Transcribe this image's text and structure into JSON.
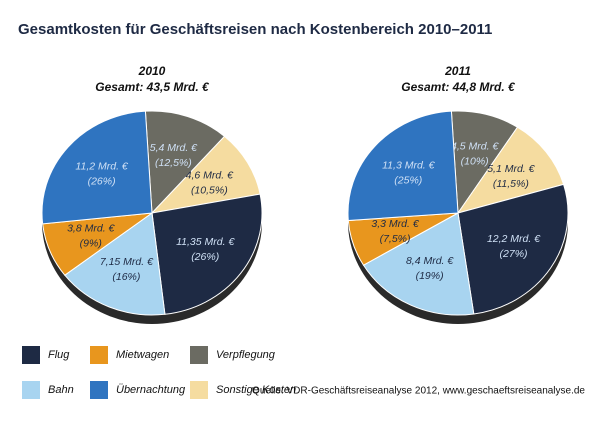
{
  "title": "Gesamtkosten für Geschäftsreisen nach Kostenbereich 2010–2011",
  "source": "Quelle: VDR-Geschäftsreiseanalyse 2012, www.geschaeftsreiseanalyse.de",
  "legend": [
    {
      "name": "Flug",
      "color": "#1e2a44"
    },
    {
      "name": "Bahn",
      "color": "#a8d4f0"
    },
    {
      "name": "Mietwagen",
      "color": "#e8961e"
    },
    {
      "name": "Übernachtung",
      "color": "#2f74c0"
    },
    {
      "name": "Verpflegung",
      "color": "#6b6b62"
    },
    {
      "name": "Sonstige Kosten",
      "color": "#f5dca0"
    }
  ],
  "chart_data": [
    {
      "type": "pie",
      "title": "2010",
      "subtitle": "Gesamt: 43,5 Mrd. €",
      "categories": [
        "Verpflegung",
        "Sonstige Kosten",
        "Flug",
        "Bahn",
        "Mietwagen",
        "Übernachtung"
      ],
      "values": [
        5.4,
        4.6,
        11.35,
        7.15,
        3.8,
        11.2
      ],
      "value_labels": [
        "5,4 Mrd. €",
        "4,6 Mrd. €",
        "11,35 Mrd. €",
        "7,15 Mrd. €",
        "3,8 Mrd. €",
        "11,2 Mrd. €"
      ],
      "shares": [
        12.5,
        10.5,
        26,
        16,
        9,
        26
      ],
      "share_labels": [
        "(12,5%)",
        "(10,5%)",
        "(26%)",
        "(16%)",
        "(9%)",
        "(26%)"
      ]
    },
    {
      "type": "pie",
      "title": "2011",
      "subtitle": "Gesamt: 44,8 Mrd. €",
      "categories": [
        "Verpflegung",
        "Sonstige Kosten",
        "Flug",
        "Bahn",
        "Mietwagen",
        "Übernachtung"
      ],
      "values": [
        4.5,
        5.1,
        12.2,
        8.4,
        3.3,
        11.3
      ],
      "value_labels": [
        "4,5 Mrd. €",
        "5,1 Mrd. €",
        "12,2 Mrd. €",
        "8,4 Mrd. €",
        "3,3 Mrd. €",
        "11,3 Mrd. €"
      ],
      "shares": [
        10,
        11.5,
        27,
        19,
        7.5,
        25
      ],
      "share_labels": [
        "(10%)",
        "(11,5%)",
        "(27%)",
        "(19%)",
        "(7,5%)",
        "(25%)"
      ]
    }
  ]
}
